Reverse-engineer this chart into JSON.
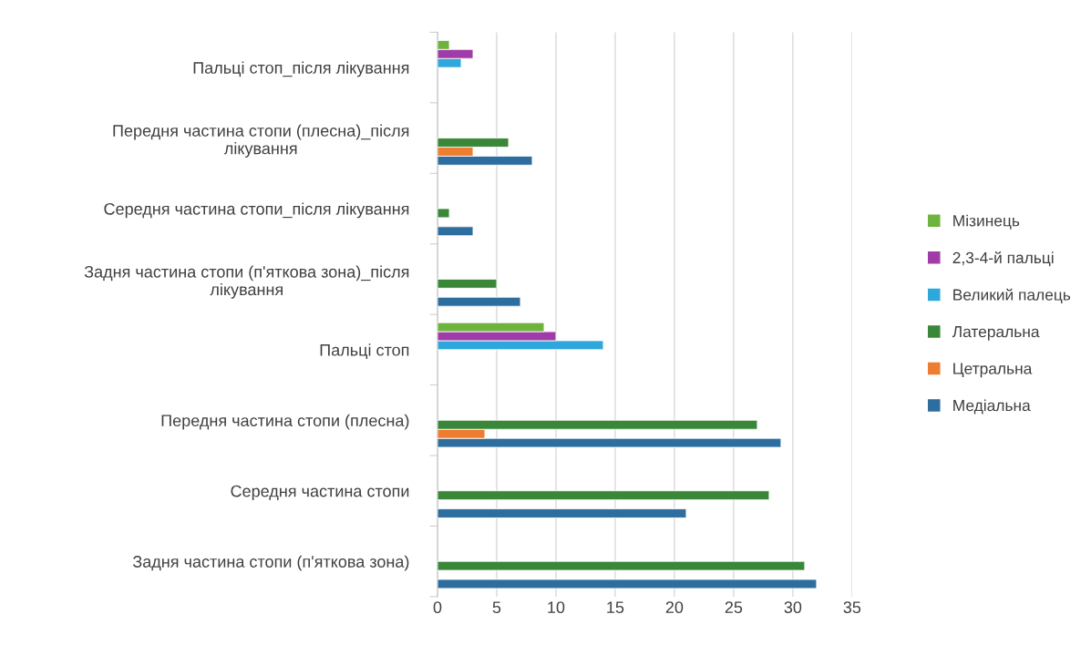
{
  "chart_data": {
    "type": "bar",
    "orientation": "horizontal",
    "categories": [
      "Пальці стоп_після лікування",
      "Передня частина стопи (плесна)_після\nлікування",
      "Середня частина стопи_після лікування",
      "Задня частина стопи (п'яткова зона)_після\nлікування",
      "Пальці стоп",
      "Передня частина стопи (плесна)",
      "Середня частина стопи",
      "Задня частина стопи (п'яткова зона)"
    ],
    "series": [
      {
        "name": "Медіальна",
        "color": "#2e6e9e",
        "values": [
          null,
          8,
          3,
          7,
          null,
          29,
          21,
          32
        ]
      },
      {
        "name": "Цетральна",
        "color": "#ed7d31",
        "values": [
          null,
          3,
          null,
          null,
          null,
          4,
          null,
          null
        ]
      },
      {
        "name": "Латеральна",
        "color": "#3a873a",
        "values": [
          null,
          6,
          1,
          5,
          null,
          27,
          28,
          31
        ]
      },
      {
        "name": "Великий палець",
        "color": "#2ea8dc",
        "values": [
          2,
          null,
          null,
          null,
          14,
          null,
          null,
          null
        ]
      },
      {
        "name": "2,3-4-й пальці",
        "color": "#a03ca8",
        "values": [
          3,
          null,
          null,
          null,
          10,
          null,
          null,
          null
        ]
      },
      {
        "name": "Мізинець",
        "color": "#6fb33f",
        "values": [
          1,
          null,
          null,
          null,
          9,
          null,
          null,
          null
        ]
      }
    ],
    "xlim": [
      0,
      35
    ],
    "xticks": [
      0,
      5,
      10,
      15,
      20,
      25,
      30,
      35
    ],
    "grid": "x",
    "legend": "right"
  }
}
